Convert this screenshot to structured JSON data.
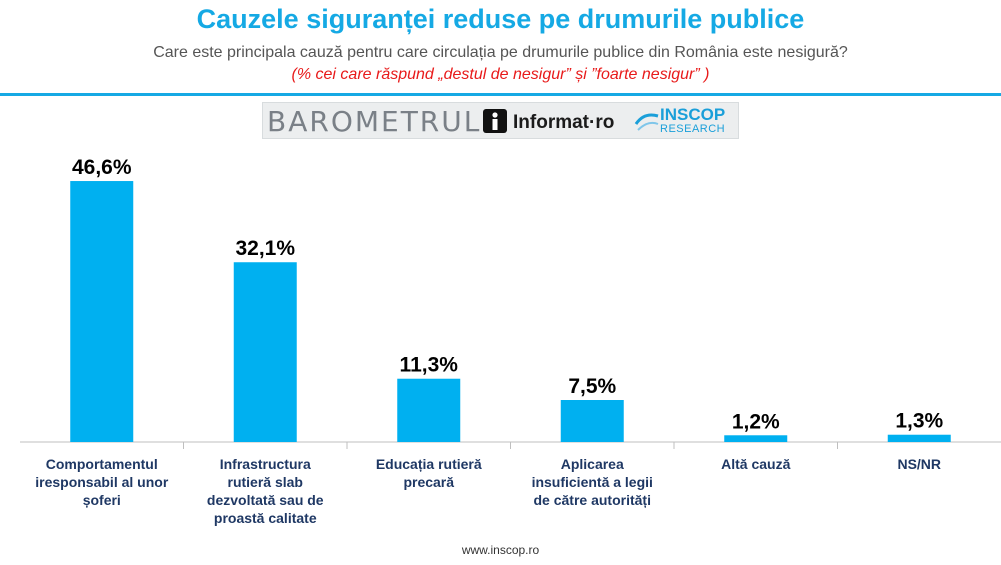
{
  "header": {
    "title": "Cauzele siguranței reduse pe drumurile publice",
    "subtitle": "Care este principala cauză pentru care circulația pe drumurile publice din România este nesigură?",
    "note": "(% cei care răspund „destul de nesigur” și ”foarte nesigur” )"
  },
  "logo": {
    "barometrul": "BAROMETRUL",
    "informat": "Informat·ro",
    "inscop": "INSCOP",
    "research": "RESEARCH"
  },
  "chart_data": {
    "type": "bar",
    "title": "Cauzele siguranței reduse pe drumurile publice",
    "categories": [
      [
        "Comportamentul",
        "iresponsabil al unor",
        "șoferi"
      ],
      [
        "Infrastructura",
        "rutieră slab",
        "dezvoltată sau de",
        "proastă calitate"
      ],
      [
        "Educația rutieră",
        "precară"
      ],
      [
        "Aplicarea",
        "insuficientă a legii",
        "de către autorități"
      ],
      [
        "Altă cauză"
      ],
      [
        "NS/NR"
      ]
    ],
    "values": [
      46.6,
      32.1,
      11.3,
      7.5,
      1.2,
      1.3
    ],
    "value_labels": [
      "46,6%",
      "32,1%",
      "11,3%",
      "7,5%",
      "1,2%",
      "1,3%"
    ],
    "ylim": [
      0,
      50
    ],
    "grid": false,
    "colors": {
      "bar": "#00b0f0",
      "axis": "#bfbfbf",
      "text": "#000000",
      "category_text": "#1f3864"
    }
  },
  "footer": {
    "url": "www.inscop.ro"
  }
}
